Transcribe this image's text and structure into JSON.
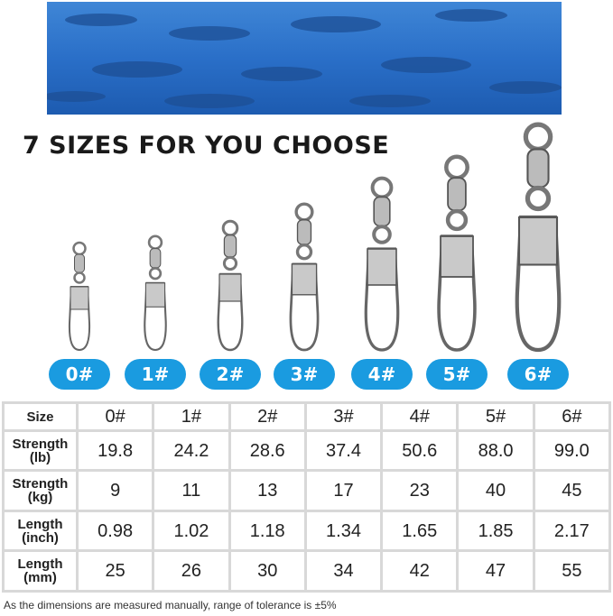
{
  "title": "7 SIZES FOR YOU CHOOSE",
  "sizes": [
    "0#",
    "1#",
    "2#",
    "3#",
    "4#",
    "5#",
    "6#"
  ],
  "colors": {
    "accent": "#1a9be0",
    "banner": "#2a6fc8"
  },
  "table": {
    "rows": [
      {
        "label": "Size",
        "values": [
          "0#",
          "1#",
          "2#",
          "3#",
          "4#",
          "5#",
          "6#"
        ]
      },
      {
        "label": "Strength (lb)",
        "values": [
          "19.8",
          "24.2",
          "28.6",
          "37.4",
          "50.6",
          "88.0",
          "99.0"
        ]
      },
      {
        "label": "Strength (kg)",
        "values": [
          "9",
          "11",
          "13",
          "17",
          "23",
          "40",
          "45"
        ]
      },
      {
        "label": "Length (inch)",
        "values": [
          "0.98",
          "1.02",
          "1.18",
          "1.34",
          "1.65",
          "1.85",
          "2.17"
        ]
      },
      {
        "label": "Length (mm)",
        "values": [
          "25",
          "26",
          "30",
          "34",
          "42",
          "47",
          "55"
        ]
      }
    ]
  },
  "note": "As the dimensions are measured manually, range of tolerance is ±5%"
}
